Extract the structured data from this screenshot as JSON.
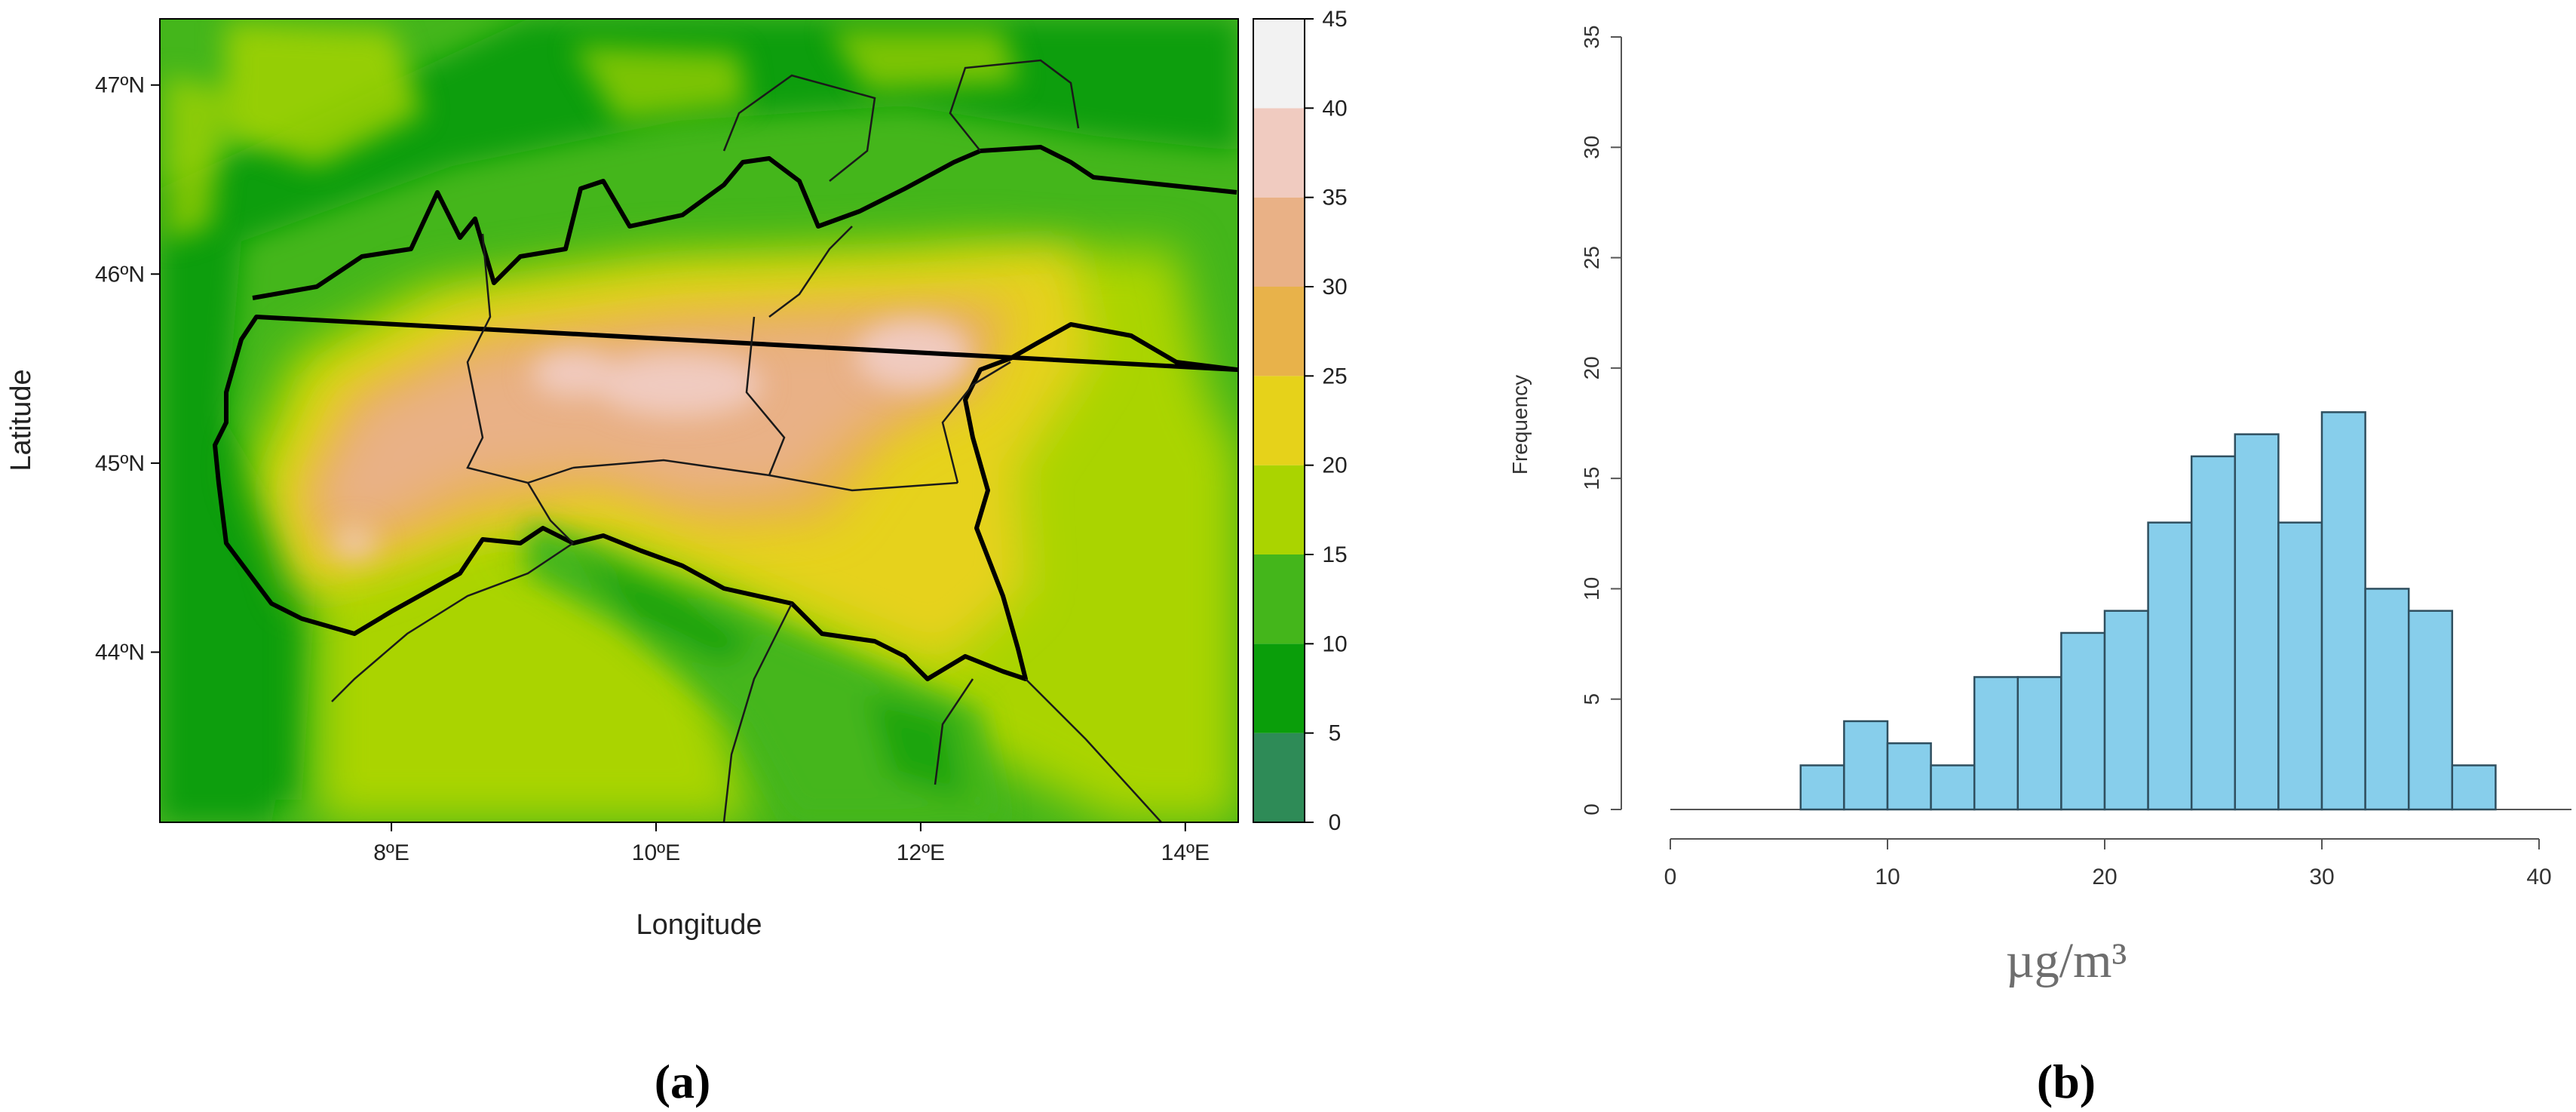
{
  "panel_labels": [
    "(a)",
    "(b)"
  ],
  "colors": {
    "scale": [
      "#2e8b57",
      "#0a9e0a",
      "#44b61b",
      "#aad400",
      "#e6d21a",
      "#e8b24a",
      "#e9b186",
      "#f0cbc0",
      "#f2f2f2"
    ],
    "histogram_fill": "#87ceeb",
    "histogram_edge": "#2f4f5f",
    "borders": "#000000"
  },
  "chart_data": [
    {
      "type": "heatmap",
      "xlabel": "Longitude",
      "ylabel": "Latitude",
      "x_ticks": [
        "8ºE",
        "10ºE",
        "12ºE",
        "14ºE"
      ],
      "x_tick_values": [
        8,
        10,
        12,
        14
      ],
      "y_ticks": [
        "44ºN",
        "45ºN",
        "46ºN",
        "47ºN"
      ],
      "y_tick_values": [
        44,
        45,
        46,
        47
      ],
      "xlim": [
        6.25,
        14.4
      ],
      "ylim": [
        43.1,
        47.35
      ],
      "colorbar": {
        "breaks": [
          0,
          5,
          10,
          15,
          20,
          25,
          30,
          35,
          40,
          45
        ],
        "tick_labels": [
          "0",
          "5",
          "10",
          "15",
          "20",
          "25",
          "30",
          "35",
          "40",
          "45"
        ]
      }
    },
    {
      "type": "bar",
      "subtype": "histogram",
      "xlabel": "µg/m³",
      "ylabel": "Frequency",
      "bins_start": 6,
      "bin_width": 2,
      "values": [
        2,
        4,
        3,
        2,
        6,
        6,
        8,
        9,
        13,
        16,
        17,
        13,
        18,
        10,
        9,
        2
      ],
      "x_ticks": [
        "0",
        "10",
        "20",
        "30",
        "40"
      ],
      "x_tick_values": [
        0,
        10,
        20,
        30,
        40
      ],
      "y_ticks": [
        "0",
        "5",
        "10",
        "15",
        "20",
        "25",
        "30",
        "35"
      ],
      "y_tick_values": [
        0,
        5,
        10,
        15,
        20,
        25,
        30,
        35
      ],
      "xlim": [
        0,
        40
      ],
      "ylim": [
        0,
        35
      ]
    }
  ]
}
